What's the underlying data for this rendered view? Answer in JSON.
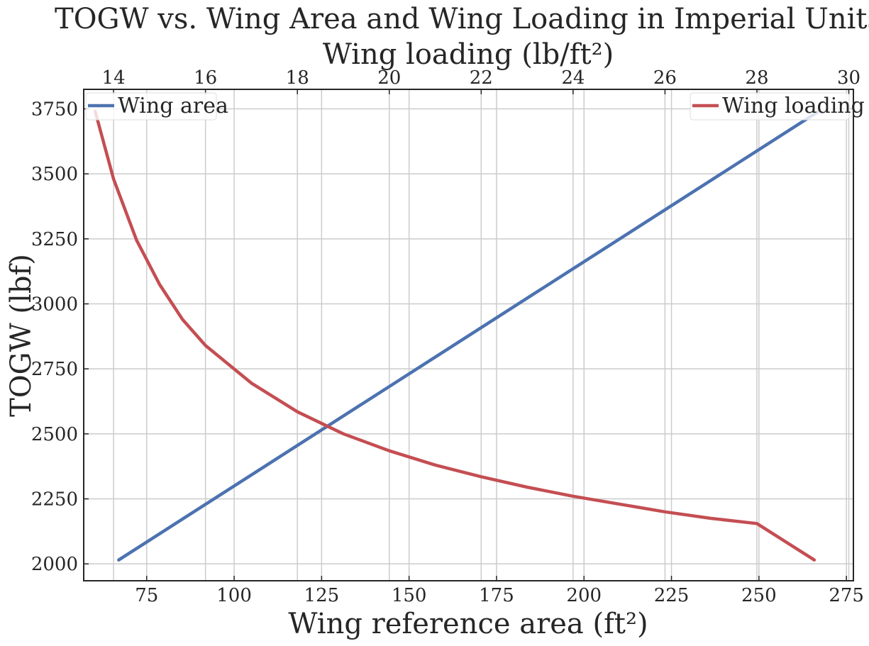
{
  "chart_data": {
    "type": "line",
    "title": "TOGW vs. Wing Area and Wing Loading in Imperial Units",
    "xlabel": "Wing reference area (ft²)",
    "x2label": "Wing loading (lb/ft²)",
    "ylabel": "TOGW (lbf)",
    "xlim": [
      57,
      277
    ],
    "x2lim": [
      13.35,
      30.1
    ],
    "ylim": [
      1935,
      3825
    ],
    "x_ticks": [
      75,
      100,
      125,
      150,
      175,
      200,
      225,
      250,
      275
    ],
    "x2_ticks": [
      14,
      16,
      18,
      20,
      22,
      24,
      26,
      28,
      30
    ],
    "y_ticks": [
      2000,
      2250,
      2500,
      2750,
      3000,
      3250,
      3500,
      3750
    ],
    "grid": true,
    "series": [
      {
        "name": "Wing area",
        "axis": "bottom",
        "color": "#4c72b0",
        "legend_position": "upper-left",
        "x": [
          67,
          267
        ],
        "y": [
          2015,
          3740
        ]
      },
      {
        "name": "Wing loading",
        "axis": "top",
        "color": "#c44e52",
        "legend_position": "upper-right",
        "x": [
          13.6,
          14.0,
          14.5,
          15.0,
          15.5,
          16.0,
          17.0,
          18.0,
          19.0,
          20.0,
          21.0,
          22.0,
          23.0,
          24.0,
          25.0,
          26.0,
          27.0,
          28.0,
          29.25
        ],
        "y": [
          3740,
          3480,
          3245,
          3075,
          2940,
          2840,
          2695,
          2585,
          2500,
          2435,
          2380,
          2335,
          2295,
          2260,
          2230,
          2200,
          2175,
          2155,
          2015
        ]
      }
    ]
  }
}
